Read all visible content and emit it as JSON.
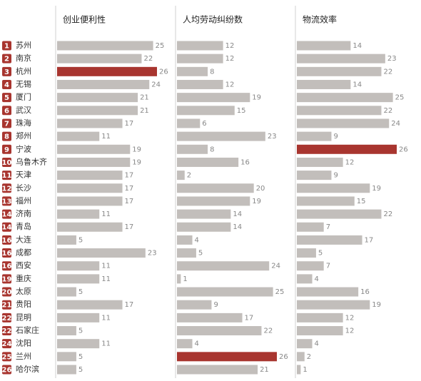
{
  "chart_data": {
    "type": "bar",
    "orientation": "horizontal",
    "ranks": [
      1,
      2,
      3,
      4,
      5,
      6,
      7,
      8,
      9,
      10,
      11,
      12,
      13,
      14,
      14,
      16,
      16,
      16,
      19,
      20,
      21,
      22,
      22,
      24,
      25,
      26
    ],
    "categories": [
      "苏州",
      "南京",
      "杭州",
      "无锡",
      "厦门",
      "武汉",
      "珠海",
      "郑州",
      "宁波",
      "乌鲁木齐",
      "天津",
      "长沙",
      "福州",
      "济南",
      "青岛",
      "大连",
      "成都",
      "西安",
      "重庆",
      "太原",
      "贵阳",
      "昆明",
      "石家庄",
      "沈阳",
      "兰州",
      "哈尔滨"
    ],
    "rank_color": "#a8352f",
    "series": [
      {
        "name": "创业便利性",
        "color": "#c2bebb",
        "highlight": [
          2
        ],
        "highlight_color": "#a8352f",
        "values": [
          25,
          22,
          26,
          24,
          21,
          21,
          17,
          11,
          19,
          19,
          17,
          17,
          17,
          11,
          17,
          5,
          23,
          11,
          11,
          5,
          17,
          11,
          5,
          11,
          5,
          5
        ]
      },
      {
        "name": "人均劳动纠纷数",
        "color": "#c2bebb",
        "highlight": [
          24
        ],
        "highlight_color": "#a8352f",
        "values": [
          12,
          12,
          8,
          12,
          19,
          15,
          6,
          23,
          8,
          16,
          2,
          20,
          19,
          14,
          14,
          4,
          5,
          24,
          1,
          25,
          9,
          17,
          22,
          4,
          26,
          21
        ]
      },
      {
        "name": "物流效率",
        "color": "#c2bebb",
        "highlight": [
          8
        ],
        "highlight_color": "#a8352f",
        "values": [
          14,
          23,
          22,
          14,
          25,
          22,
          24,
          9,
          26,
          12,
          9,
          19,
          15,
          22,
          7,
          17,
          5,
          7,
          4,
          16,
          19,
          12,
          12,
          4,
          2,
          1
        ]
      }
    ]
  }
}
